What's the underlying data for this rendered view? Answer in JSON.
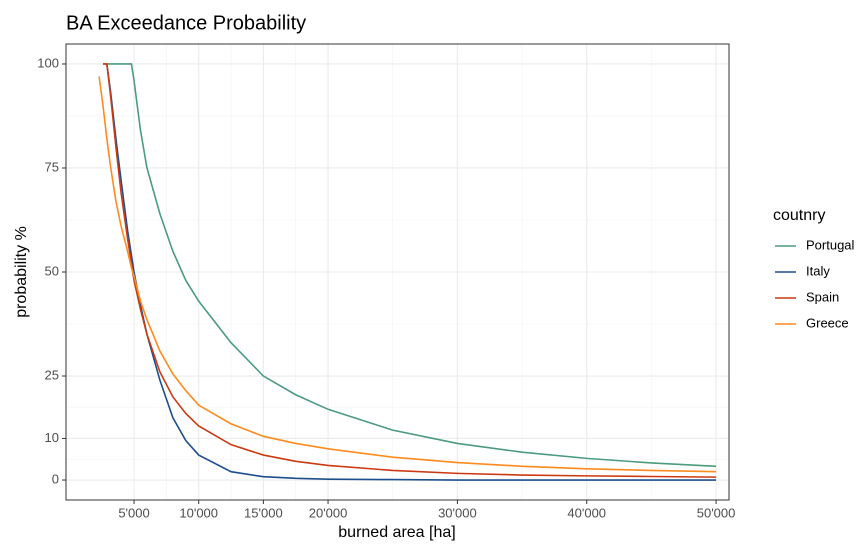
{
  "chart_data": {
    "type": "line",
    "title": "BA Exceedance Probability",
    "x_label": "burned area [ha]",
    "y_label": "probability %",
    "legend_title": "coutnry",
    "legend_position": "right",
    "grid": true,
    "x": [
      2300,
      2600,
      2900,
      3200,
      3600,
      4000,
      4500,
      4800,
      5000,
      5500,
      6000,
      7000,
      8000,
      9000,
      10000,
      12500,
      15000,
      17500,
      20000,
      25000,
      30000,
      35000,
      40000,
      45000,
      50000
    ],
    "series": [
      {
        "name": "Portugal",
        "color": "#4b9b7c",
        "values": [
          null,
          100,
          100,
          100,
          100,
          100,
          100,
          100,
          96,
          84,
          75,
          64,
          55,
          48,
          43,
          33,
          25,
          20.5,
          17,
          12,
          8.8,
          6.7,
          5.2,
          4.1,
          3.3
        ]
      },
      {
        "name": "Italy",
        "color": "#1d4f8d",
        "values": [
          null,
          null,
          100,
          93,
          82,
          72,
          60,
          54,
          50,
          42,
          35,
          24,
          15,
          9.5,
          6,
          2,
          0.8,
          0.4,
          0.2,
          0.1,
          0,
          0,
          0,
          0,
          0
        ]
      },
      {
        "name": "Spain",
        "color": "#cc3a12",
        "values": [
          null,
          100,
          100,
          92,
          80,
          69,
          58,
          52,
          48,
          41,
          35,
          26,
          20,
          16,
          13,
          8.5,
          6,
          4.5,
          3.5,
          2.3,
          1.6,
          1.2,
          1,
          0.85,
          0.7
        ]
      },
      {
        "name": "Greece",
        "color": "#ff8a1e",
        "values": [
          97,
          90,
          82,
          75,
          67,
          61,
          55,
          51,
          49,
          43,
          38.5,
          31,
          25.5,
          21.5,
          18,
          13.5,
          10.5,
          8.8,
          7.5,
          5.5,
          4.2,
          3.3,
          2.7,
          2.3,
          2
        ]
      }
    ],
    "xlim": [
      -260,
      51000
    ],
    "ylim": [
      -4.8,
      104.8
    ],
    "xticks": [
      {
        "value": 5000,
        "label": "5'000"
      },
      {
        "value": 10000,
        "label": "10'000"
      },
      {
        "value": 15000,
        "label": "15'000"
      },
      {
        "value": 20000,
        "label": "20'000"
      },
      {
        "value": 30000,
        "label": "30'000"
      },
      {
        "value": 40000,
        "label": "40'000"
      },
      {
        "value": 50000,
        "label": "50'000"
      }
    ],
    "yticks": [
      0,
      10,
      25,
      50,
      75,
      100
    ]
  }
}
